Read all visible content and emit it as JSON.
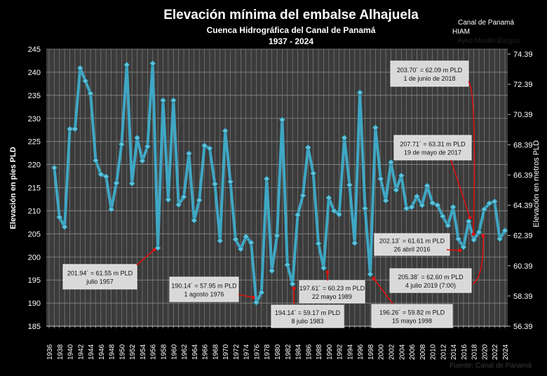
{
  "chart_data": {
    "type": "line",
    "title": "Elevación mínima del embalse Alhajuela",
    "subtitle": "Cuenca Hidrográfica del Canal de Panamá",
    "period": "1937 - 2024",
    "ylabel": "Elevación en pies PLD",
    "ylabel_right": "Elevación en metros PLD",
    "ylim": [
      185,
      245
    ],
    "yticks": [
      185,
      190,
      195,
      200,
      205,
      210,
      215,
      220,
      225,
      230,
      235,
      240,
      245
    ],
    "yticks_right": [
      "56.39",
      "58.39",
      "60.39",
      "62.39",
      "64.39",
      "66.39",
      "68.39",
      "70.39",
      "72.39",
      "74.39"
    ],
    "xlim": [
      1936,
      2024
    ],
    "xticks": [
      1936,
      1938,
      1940,
      1942,
      1944,
      1946,
      1948,
      1950,
      1952,
      1954,
      1956,
      1958,
      1960,
      1962,
      1964,
      1966,
      1968,
      1970,
      1972,
      1974,
      1976,
      1978,
      1980,
      1982,
      1984,
      1986,
      1988,
      1990,
      1992,
      1994,
      1996,
      1998,
      2000,
      2002,
      2004,
      2006,
      2008,
      2010,
      2012,
      2014,
      2016,
      2018,
      2020,
      2022,
      2024
    ],
    "grid": true,
    "line_color": "#3fa7c4",
    "x": [
      1937,
      1938,
      1939,
      1940,
      1941,
      1942,
      1943,
      1944,
      1945,
      1946,
      1947,
      1948,
      1949,
      1950,
      1951,
      1952,
      1953,
      1954,
      1955,
      1956,
      1957,
      1958,
      1959,
      1960,
      1961,
      1962,
      1963,
      1964,
      1965,
      1966,
      1967,
      1968,
      1969,
      1970,
      1971,
      1972,
      1973,
      1974,
      1975,
      1976,
      1977,
      1978,
      1979,
      1980,
      1981,
      1982,
      1983,
      1984,
      1985,
      1986,
      1987,
      1988,
      1989,
      1990,
      1991,
      1992,
      1993,
      1994,
      1995,
      1996,
      1997,
      1998,
      1999,
      2000,
      2001,
      2002,
      2003,
      2004,
      2005,
      2006,
      2007,
      2008,
      2009,
      2010,
      2011,
      2012,
      2013,
      2014,
      2015,
      2016,
      2017,
      2018,
      2019,
      2020,
      2021,
      2022,
      2023,
      2024
    ],
    "values": [
      219.3,
      208.6,
      206.5,
      227.7,
      227.7,
      240.9,
      238.1,
      235.4,
      220.9,
      217.9,
      217.4,
      210.3,
      216.0,
      224.4,
      241.6,
      215.9,
      225.8,
      220.8,
      223.9,
      241.9,
      201.94,
      233.9,
      212.4,
      233.9,
      211.3,
      213.0,
      222.4,
      207.9,
      212.3,
      224.1,
      223.5,
      215.8,
      203.5,
      227.3,
      216.3,
      203.8,
      201.7,
      204.4,
      203.1,
      190.14,
      192.3,
      216.9,
      197.0,
      204.6,
      229.7,
      198.3,
      194.14,
      209.1,
      213.3,
      223.7,
      218.1,
      202.9,
      197.61,
      212.8,
      210.0,
      209.2,
      225.8,
      215.6,
      203.0,
      235.6,
      210.5,
      196.26,
      228.0,
      216.9,
      212.2,
      220.5,
      214.5,
      217.6,
      210.5,
      210.8,
      213.1,
      211.2,
      215.4,
      211.7,
      211.2,
      208.8,
      206.8,
      210.8,
      203.9,
      202.13,
      207.71,
      203.7,
      205.38,
      210.3,
      211.6,
      212.0,
      203.9,
      205.7
    ],
    "annotations": [
      {
        "line1": "201.94´ = 61.55 m PLD",
        "line2": "julio 1957",
        "year": 1957,
        "value": 201.94
      },
      {
        "line1": "190.14´ = 57.95 m PLD",
        "line2": "1 agosto 1976",
        "year": 1976,
        "value": 190.14
      },
      {
        "line1": "194.14´ = 59.17 m PLD",
        "line2": "8 julio 1983",
        "year": 1983,
        "value": 194.14
      },
      {
        "line1": "197.61´ = 60.23 m PLD",
        "line2": "22 mayo 1989",
        "year": 1989,
        "value": 197.61
      },
      {
        "line1": "196.26´  = 59.82 m PLD",
        "line2": "15 mayo 1998",
        "year": 1998,
        "value": 196.26
      },
      {
        "line1": "203.70´ = 62.09 m PLD",
        "line2": "1 de junio de 2018",
        "year": 2018,
        "value": 203.7
      },
      {
        "line1": "207.71´ = 63.31 m PLD",
        "line2": "19 de mayo de 2017",
        "year": 2017,
        "value": 207.71
      },
      {
        "line1": "202.13´  = 61.61 m  PLD",
        "line2": "26 abril 2016",
        "year": 2016,
        "value": 202.13
      },
      {
        "line1": "205.38´  = 62.60 m  PLD",
        "line2": "4 julio 2019 (7:00)",
        "year": 2019,
        "value": 205.38
      }
    ]
  },
  "credits": {
    "org": "Canal de Panamá",
    "dept": "HIAM",
    "author": "Ayko Murillo Burgos",
    "source": "Fuente: Canal de Panamá"
  }
}
